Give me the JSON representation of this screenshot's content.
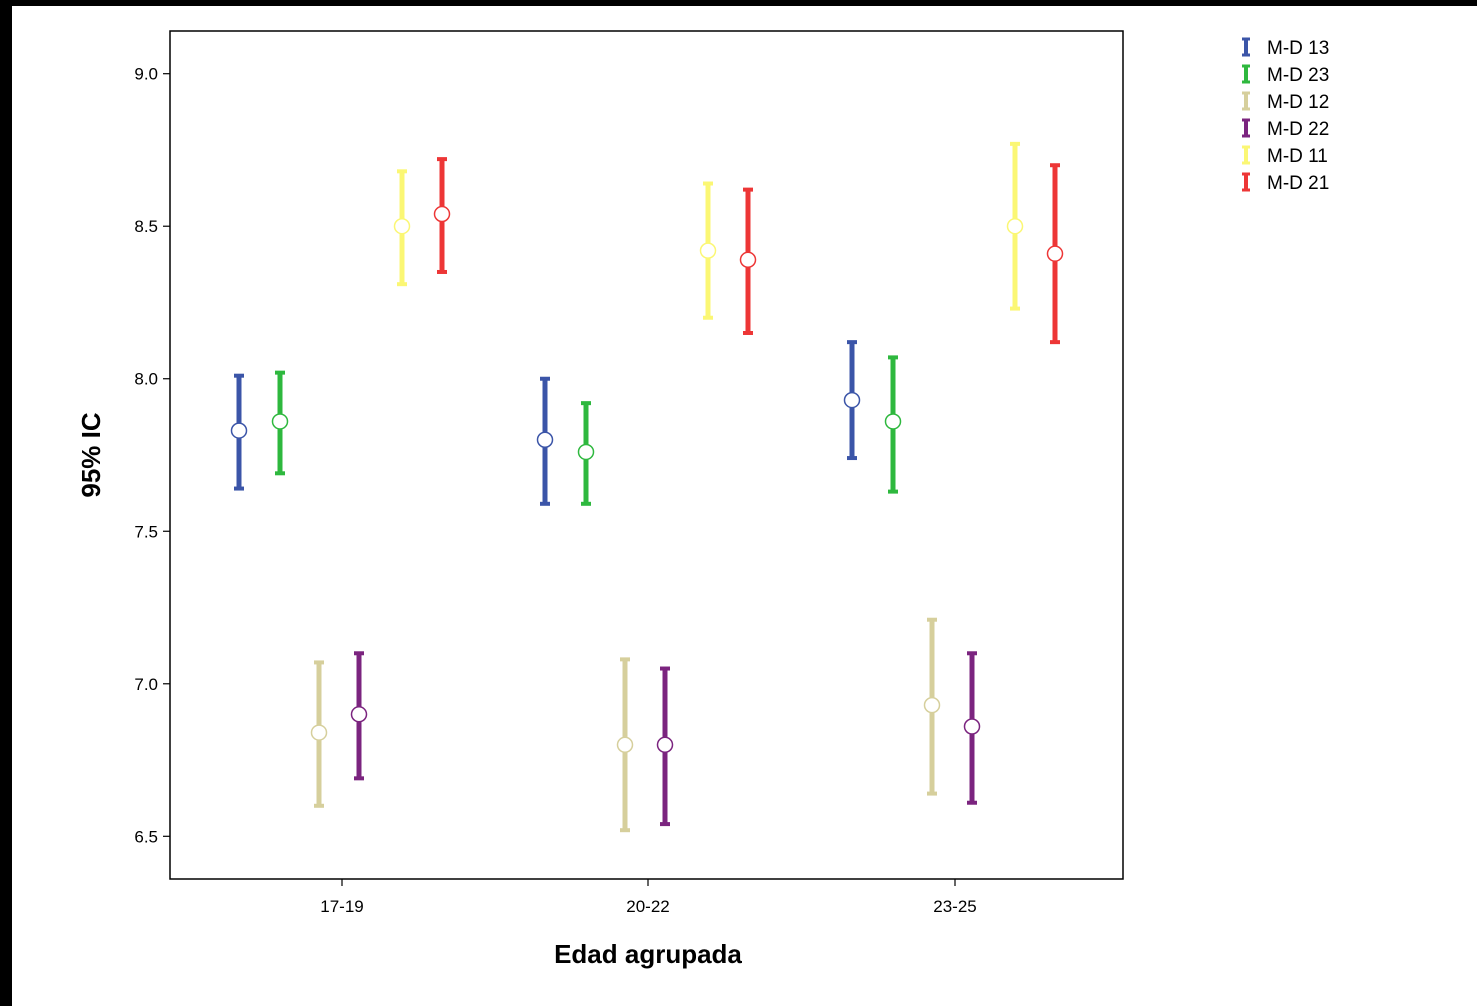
{
  "chart_data": {
    "type": "errorbar",
    "title": "",
    "xlabel": "Edad agrupada",
    "ylabel": "95% IC",
    "categories": [
      "17-19",
      "20-22",
      "23-25"
    ],
    "ylim": [
      6.36,
      9.14
    ],
    "yticks": [
      "6.5",
      "7.0",
      "7.5",
      "8.0",
      "8.5",
      "9.0"
    ],
    "grid": false,
    "legend_position": "top-right",
    "series": [
      {
        "name": "M-D 13",
        "color": "#3b55a8",
        "means": [
          7.83,
          7.8,
          7.93
        ],
        "lower": [
          7.64,
          7.59,
          7.74
        ],
        "upper": [
          8.01,
          8.0,
          8.12
        ]
      },
      {
        "name": "M-D 23",
        "color": "#2eb83e",
        "means": [
          7.86,
          7.76,
          7.86
        ],
        "lower": [
          7.69,
          7.59,
          7.63
        ],
        "upper": [
          8.02,
          7.92,
          8.07
        ]
      },
      {
        "name": "M-D 12",
        "color": "#d6cf9c",
        "means": [
          6.84,
          6.8,
          6.93
        ],
        "lower": [
          6.6,
          6.52,
          6.64
        ],
        "upper": [
          7.07,
          7.08,
          7.21
        ]
      },
      {
        "name": "M-D 22",
        "color": "#7b247f",
        "means": [
          6.9,
          6.8,
          6.86
        ],
        "lower": [
          6.69,
          6.54,
          6.61
        ],
        "upper": [
          7.1,
          7.05,
          7.1
        ]
      },
      {
        "name": "M-D 11",
        "color": "#fbf774",
        "means": [
          8.5,
          8.42,
          8.5
        ],
        "lower": [
          8.31,
          8.2,
          8.23
        ],
        "upper": [
          8.68,
          8.64,
          8.77
        ]
      },
      {
        "name": "M-D 21",
        "color": "#ed3636",
        "means": [
          8.54,
          8.39,
          8.41
        ],
        "lower": [
          8.35,
          8.15,
          8.12
        ],
        "upper": [
          8.72,
          8.62,
          8.7
        ]
      }
    ]
  }
}
